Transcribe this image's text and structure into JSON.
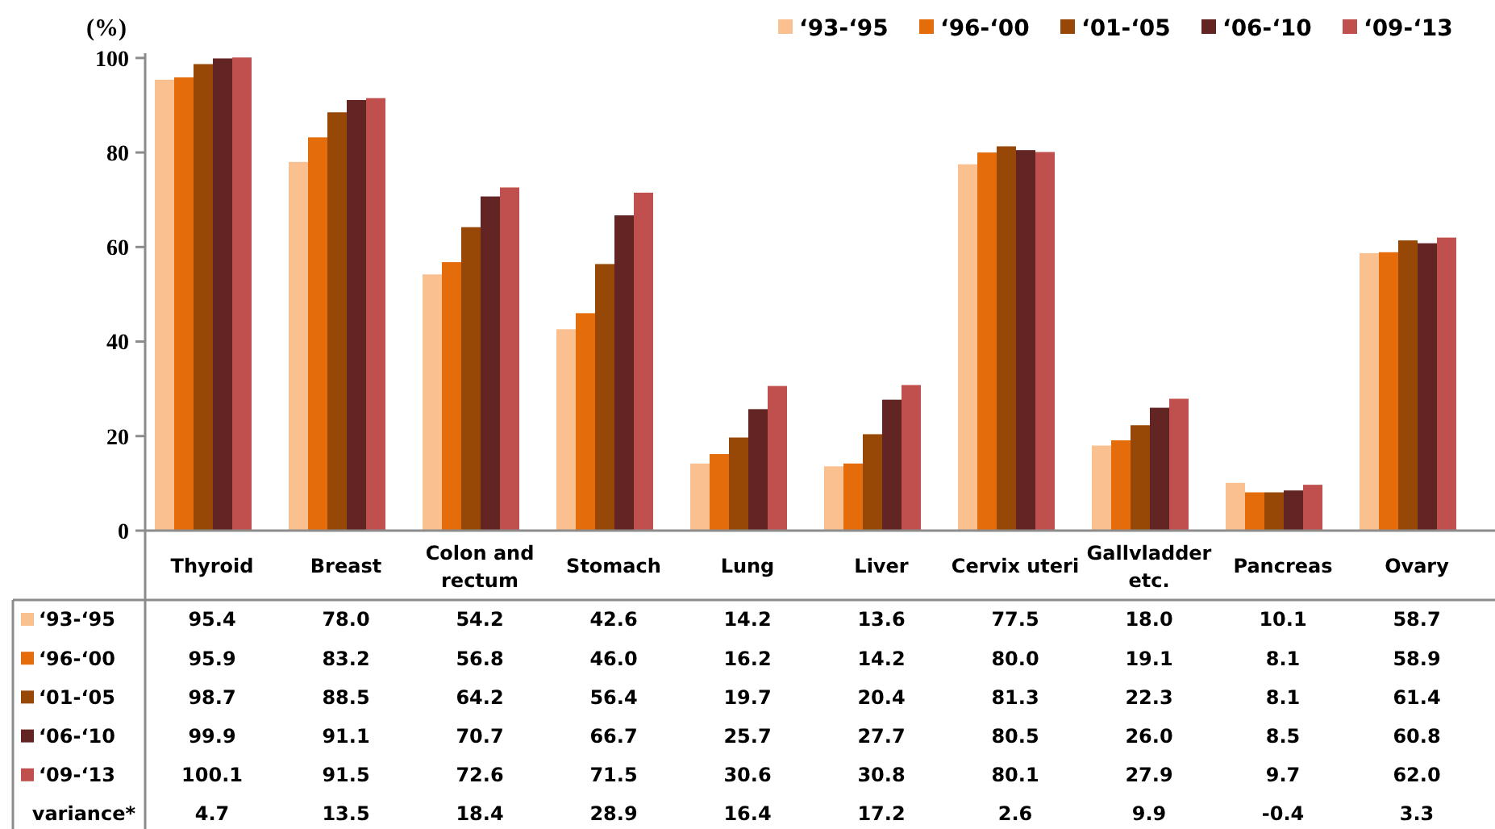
{
  "chart_data": {
    "type": "bar",
    "ylabel": "(%)",
    "categories": [
      "Thyroid",
      "Breast",
      "Colon and rectum",
      "Stomach",
      "Lung",
      "Liver",
      "Cervix uteri",
      "Gallvladder etc.",
      "Pancreas",
      "Ovary"
    ],
    "series": [
      {
        "name": "‘93-‘95",
        "color": "#fac090",
        "values": [
          95.4,
          78.0,
          54.2,
          42.6,
          14.2,
          13.6,
          77.5,
          18.0,
          10.1,
          58.7
        ],
        "value_labels": [
          "95.4",
          "78.0",
          "54.2",
          "42.6",
          "14.2",
          "13.6",
          "77.5",
          "18.0",
          "10.1",
          "58.7"
        ]
      },
      {
        "name": "‘96-‘00",
        "color": "#e46c0a",
        "values": [
          95.9,
          83.2,
          56.8,
          46.0,
          16.2,
          14.2,
          80.0,
          19.1,
          8.1,
          58.9
        ],
        "value_labels": [
          "95.9",
          "83.2",
          "56.8",
          "46.0",
          "16.2",
          "14.2",
          "80.0",
          "19.1",
          "8.1",
          "58.9"
        ]
      },
      {
        "name": "‘01-‘05",
        "color": "#974806",
        "values": [
          98.7,
          88.5,
          64.2,
          56.4,
          19.7,
          20.4,
          81.3,
          22.3,
          8.1,
          61.4
        ],
        "value_labels": [
          "98.7",
          "88.5",
          "64.2",
          "56.4",
          "19.7",
          "20.4",
          "81.3",
          "22.3",
          "8.1",
          "61.4"
        ]
      },
      {
        "name": "‘06-‘10",
        "color": "#632523",
        "values": [
          99.9,
          91.1,
          70.7,
          66.7,
          25.7,
          27.7,
          80.5,
          26.0,
          8.5,
          60.8
        ],
        "value_labels": [
          "99.9",
          "91.1",
          "70.7",
          "66.7",
          "25.7",
          "27.7",
          "80.5",
          "26.0",
          "8.5",
          "60.8"
        ]
      },
      {
        "name": "‘09-‘13",
        "color": "#c0504d",
        "values": [
          100.1,
          91.5,
          72.6,
          71.5,
          30.6,
          30.8,
          80.1,
          27.9,
          9.7,
          62.0
        ],
        "value_labels": [
          "100.1",
          "91.5",
          "72.6",
          "71.5",
          "30.6",
          "30.8",
          "80.1",
          "27.9",
          "9.7",
          "62.0"
        ]
      }
    ],
    "ylim": [
      0,
      101
    ],
    "yticks": [
      0,
      20,
      40,
      60,
      80,
      100
    ],
    "grid": false,
    "legend": "top right",
    "annotations": [
      "variance*",
      "4.7",
      "13.5",
      "18.4",
      "28.9",
      "16.4",
      "17.2",
      "2.6",
      "9.9",
      "-0.4",
      "3.3"
    ]
  }
}
